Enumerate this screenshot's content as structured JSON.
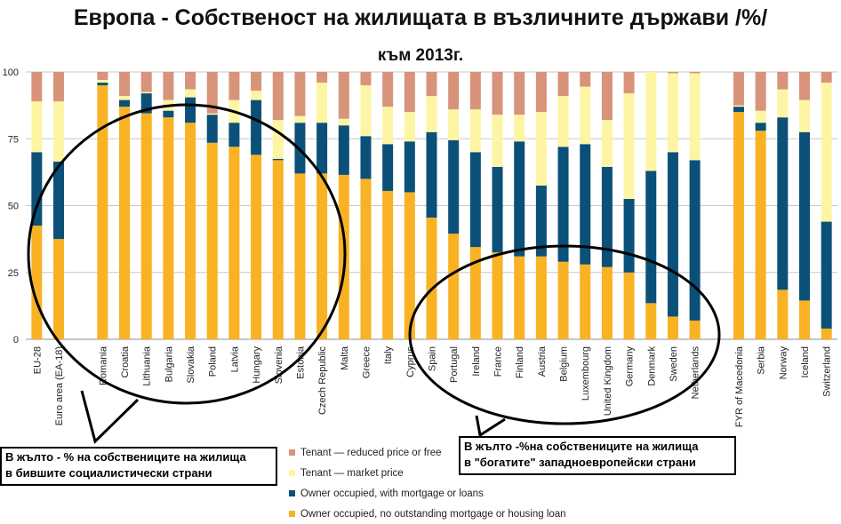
{
  "title": "Европа - Собственост на жилищата в възличните държави /%/",
  "subtitle": "към 2013г.",
  "colors": {
    "owner_no_mortgage": "#F8B223",
    "owner_mortgage": "#0B5078",
    "tenant_market": "#FDF5A3",
    "tenant_reduced": "#D8937B",
    "grid": "#c8c8c8",
    "axis": "#8f8f8f",
    "annotation_outline": "#000000"
  },
  "chart_data": {
    "type": "bar",
    "stacked": true,
    "ylim": [
      0,
      100
    ],
    "yticks": [
      0,
      25,
      50,
      75,
      100
    ],
    "grid": true,
    "legend_position": "bottom",
    "categories": [
      "EU-28",
      "Euro area (EA-18)",
      "",
      "Romania",
      "Croatia",
      "Lithuania",
      "Bulgaria",
      "Slovakia",
      "Poland",
      "Latvia",
      "Hungary",
      "Slovenia",
      "Estonia",
      "Czech Republic",
      "Malta",
      "Greece",
      "Italy",
      "Cyprus",
      "Spain",
      "Portugal",
      "Ireland",
      "France",
      "Finland",
      "Austria",
      "Belgium",
      "Luxembourg",
      "United Kingdom",
      "Germany",
      "Denmark",
      "Sweden",
      "Netherlands",
      "",
      "FYR of Macedonia",
      "Serbia",
      "Norway",
      "Iceland",
      "Switzerland"
    ],
    "series": [
      {
        "name": "Owner occupied, no outstanding mortgage or housing loan",
        "values": [
          42.5,
          37.5,
          null,
          95.0,
          87.0,
          84.5,
          83.0,
          81.0,
          73.5,
          72.0,
          69.0,
          67.0,
          62.0,
          62.0,
          61.5,
          60.0,
          55.5,
          55.0,
          45.5,
          39.5,
          34.5,
          32.5,
          31.0,
          31.0,
          29.0,
          28.0,
          27.0,
          25.0,
          13.5,
          8.5,
          7.0,
          null,
          85.0,
          78.0,
          18.5,
          14.5,
          4.0
        ]
      },
      {
        "name": "Owner occupied, with mortgage or loans",
        "values": [
          27.5,
          29.0,
          null,
          1.0,
          2.5,
          7.5,
          2.5,
          9.5,
          10.5,
          9.0,
          20.5,
          0.5,
          19.0,
          19.0,
          18.5,
          16.0,
          17.5,
          19.0,
          32.0,
          35.0,
          35.5,
          32.0,
          43.0,
          26.5,
          43.0,
          45.0,
          37.5,
          27.5,
          49.5,
          61.5,
          60.0,
          null,
          2.0,
          3.0,
          64.5,
          63.0,
          40.0
        ]
      },
      {
        "name": "Tenant — market price",
        "values": [
          19.0,
          22.5,
          null,
          1.0,
          1.5,
          0.5,
          4.0,
          3.0,
          0.5,
          8.5,
          3.5,
          14.5,
          2.5,
          15.0,
          2.5,
          19.0,
          14.0,
          11.0,
          13.5,
          11.5,
          16.0,
          19.5,
          10.0,
          27.5,
          19.0,
          21.5,
          17.5,
          39.5,
          37.0,
          29.5,
          32.5,
          null,
          0.5,
          4.5,
          10.5,
          12.0,
          52.0
        ]
      },
      {
        "name": "Tenant — reduced price or free",
        "values": [
          11.0,
          11.0,
          null,
          3.0,
          9.0,
          7.5,
          10.5,
          6.5,
          15.5,
          10.5,
          7.0,
          18.0,
          16.5,
          4.0,
          17.5,
          5.0,
          13.0,
          15.0,
          9.0,
          14.0,
          14.0,
          16.0,
          16.0,
          15.0,
          9.0,
          5.5,
          18.0,
          8.0,
          0.0,
          0.5,
          0.5,
          null,
          12.5,
          14.5,
          6.5,
          10.5,
          4.0
        ]
      }
    ]
  },
  "legend": [
    {
      "label": "Tenant — reduced price or free",
      "color": "#D8937B"
    },
    {
      "label": "Tenant — market price",
      "color": "#FDF5A3"
    },
    {
      "label": "Owner occupied, with mortgage or loans",
      "color": "#0B5078"
    },
    {
      "label": "Owner occupied, no outstanding mortgage or housing loan",
      "color": "#F8B223"
    }
  ],
  "annotations": {
    "left": [
      "В жълто - % на собствениците на жилища",
      "в бившите социалистически страни"
    ],
    "right": [
      "В жълто -%на собствениците на жилища",
      "в \"богатите\" западноевропейски страни"
    ]
  }
}
